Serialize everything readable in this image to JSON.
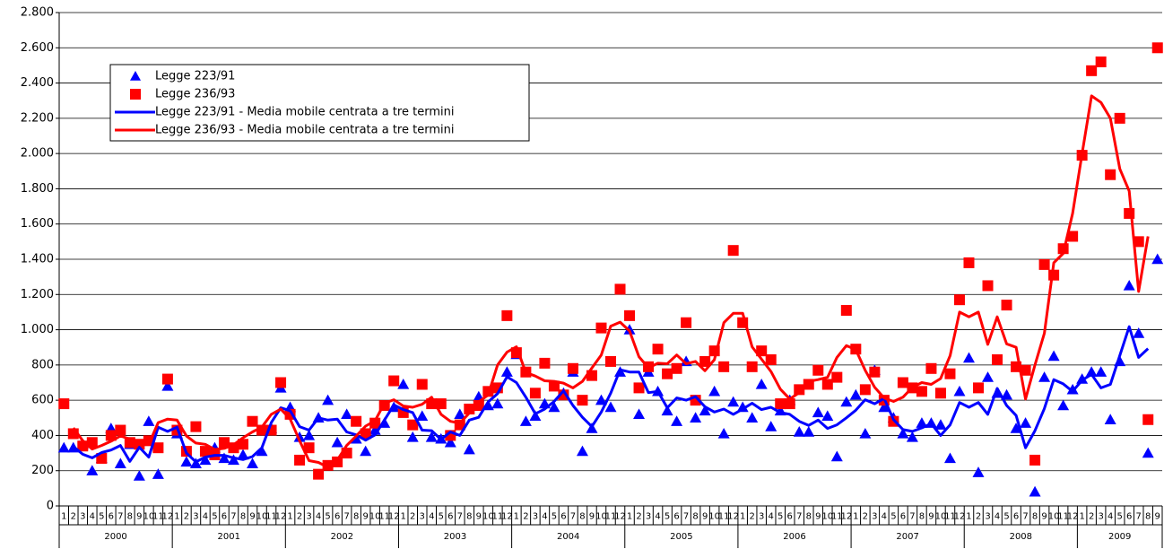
{
  "chart_data": {
    "type": "line",
    "categories": [
      "1",
      "2",
      "3",
      "4",
      "5",
      "6",
      "7",
      "8",
      "9",
      "10",
      "11",
      "12",
      "1",
      "2",
      "3",
      "4",
      "5",
      "6",
      "7",
      "8",
      "9",
      "10",
      "11",
      "12",
      "1",
      "2",
      "3",
      "4",
      "5",
      "6",
      "7",
      "8",
      "9",
      "10",
      "11",
      "12",
      "1",
      "2",
      "3",
      "4",
      "5",
      "6",
      "7",
      "8",
      "9",
      "10",
      "11",
      "12",
      "1",
      "2",
      "3",
      "4",
      "5",
      "6",
      "7",
      "8",
      "9",
      "10",
      "11",
      "12",
      "1",
      "2",
      "3",
      "4",
      "5",
      "6",
      "7",
      "8",
      "9",
      "10",
      "11",
      "12",
      "1",
      "2",
      "3",
      "4",
      "5",
      "6",
      "7",
      "8",
      "9",
      "10",
      "11",
      "12",
      "1",
      "2",
      "3",
      "4",
      "5",
      "6",
      "7",
      "8",
      "9",
      "10",
      "11",
      "12",
      "1",
      "2",
      "3",
      "4",
      "5",
      "6",
      "7",
      "8",
      "9",
      "10",
      "11",
      "12",
      "1",
      "2",
      "3",
      "4",
      "5",
      "6",
      "7",
      "8",
      "9"
    ],
    "years": [
      "2000",
      "2001",
      "2002",
      "2003",
      "2004",
      "2005",
      "2006",
      "2007",
      "2008",
      "2009"
    ],
    "ylim": [
      0,
      2800
    ],
    "yticks": [
      0,
      200,
      400,
      600,
      800,
      {
        "value": 1000,
        "label": "1.000"
      },
      {
        "value": 1200,
        "label": "1.200"
      },
      {
        "value": 1400,
        "label": "1.400"
      },
      {
        "value": 1600,
        "label": "1.600"
      },
      {
        "value": 1800,
        "label": "1.800"
      },
      {
        "value": 2000,
        "label": "2.000"
      },
      {
        "value": 2200,
        "label": "2.200"
      },
      {
        "value": 2400,
        "label": "2.400"
      },
      {
        "value": 2600,
        "label": "2.600"
      },
      {
        "value": 2800,
        "label": "2.800"
      }
    ],
    "grid": true,
    "legend": "upper left",
    "series": [
      {
        "name": "Legge 223/91",
        "color": "#0000ff",
        "mark": "triangle",
        "values": [
          330,
          330,
          350,
          200,
          270,
          440,
          240,
          350,
          170,
          480,
          180,
          680,
          410,
          250,
          240,
          260,
          330,
          270,
          260,
          290,
          240,
          310,
          440,
          670,
          560,
          390,
          400,
          500,
          600,
          360,
          520,
          380,
          310,
          430,
          470,
          560,
          690,
          390,
          510,
          390,
          380,
          360,
          520,
          320,
          620,
          570,
          580,
          760,
          860,
          480,
          510,
          580,
          560,
          640,
          760,
          310,
          440,
          600,
          560,
          760,
          1000,
          520,
          760,
          650,
          540,
          480,
          820,
          500,
          540,
          650,
          410,
          590,
          560,
          500,
          690,
          450,
          540,
          600,
          420,
          420,
          530,
          510,
          280,
          590,
          630,
          410,
          770,
          560,
          500,
          410,
          390,
          470,
          470,
          460,
          270,
          650,
          840,
          190,
          730,
          640,
          630,
          440,
          470,
          80,
          730,
          850,
          570,
          660,
          720,
          760,
          760,
          490,
          820,
          1250,
          980,
          300,
          1400
        ]
      },
      {
        "name": "Legge 236/93",
        "color": "#ff0000",
        "mark": "square",
        "values": [
          580,
          410,
          340,
          360,
          270,
          400,
          430,
          360,
          350,
          370,
          330,
          720,
          430,
          310,
          450,
          310,
          290,
          360,
          330,
          350,
          480,
          430,
          430,
          700,
          520,
          260,
          330,
          180,
          230,
          250,
          300,
          480,
          410,
          470,
          570,
          710,
          530,
          460,
          690,
          580,
          580,
          400,
          460,
          550,
          570,
          650,
          670,
          1080,
          870,
          760,
          640,
          810,
          680,
          630,
          780,
          600,
          740,
          1010,
          820,
          1230,
          1080,
          670,
          790,
          890,
          750,
          780,
          1040,
          600,
          820,
          880,
          790,
          1450,
          1040,
          790,
          880,
          830,
          580,
          580,
          660,
          690,
          770,
          690,
          730,
          1110,
          890,
          660,
          760,
          600,
          480,
          700,
          670,
          650,
          780,
          640,
          750,
          1170,
          1380,
          670,
          1250,
          830,
          1140,
          790,
          770,
          260,
          1370,
          1310,
          1460,
          1530,
          1990,
          2470,
          2520,
          1880,
          2200,
          1660,
          1500,
          490,
          2600
        ]
      },
      {
        "name": "Legge 223/91 - Media mobile centrata a tre termini",
        "color": "#0000ff",
        "mark": "line",
        "values": [
          null,
          337,
          293,
          273,
          303,
          317,
          343,
          253,
          333,
          277,
          447,
          423,
          447,
          300,
          250,
          277,
          287,
          287,
          273,
          263,
          280,
          330,
          473,
          557,
          540,
          450,
          430,
          500,
          487,
          493,
          420,
          403,
          373,
          403,
          487,
          573,
          547,
          530,
          430,
          427,
          377,
          420,
          400,
          487,
          503,
          590,
          637,
          733,
          700,
          617,
          523,
          550,
          593,
          653,
          570,
          503,
          450,
          533,
          640,
          773,
          760,
          760,
          643,
          650,
          557,
          613,
          600,
          620,
          563,
          533,
          550,
          520,
          550,
          583,
          547,
          560,
          530,
          520,
          480,
          457,
          487,
          440,
          460,
          500,
          543,
          603,
          580,
          610,
          490,
          433,
          423,
          443,
          467,
          400,
          460,
          587,
          560,
          587,
          520,
          667,
          570,
          513,
          330,
          427,
          553,
          717,
          693,
          650,
          713,
          747,
          670,
          690,
          853,
          1017,
          843,
          893,
          null
        ]
      },
      {
        "name": "Legge 236/93 - Media mobile centrata a tre termini",
        "color": "#ff0000",
        "mark": "line",
        "values": [
          null,
          443,
          370,
          323,
          343,
          367,
          397,
          380,
          360,
          350,
          473,
          493,
          487,
          397,
          357,
          350,
          320,
          327,
          347,
          387,
          420,
          447,
          520,
          550,
          493,
          370,
          257,
          247,
          220,
          260,
          343,
          397,
          453,
          483,
          583,
          603,
          567,
          560,
          577,
          617,
          520,
          480,
          470,
          527,
          590,
          630,
          800,
          873,
          903,
          757,
          737,
          710,
          707,
          697,
          670,
          707,
          783,
          857,
          1020,
          1043,
          993,
          847,
          783,
          810,
          807,
          857,
          807,
          820,
          767,
          830,
          1040,
          1093,
          1093,
          903,
          833,
          763,
          663,
          607,
          643,
          707,
          717,
          730,
          843,
          910,
          887,
          770,
          673,
          613,
          593,
          617,
          673,
          700,
          690,
          723,
          853,
          1100,
          1073,
          1100,
          917,
          1073,
          920,
          900,
          607,
          800,
          980,
          1380,
          1433,
          1660,
          1997,
          2327,
          2290,
          2200,
          1913,
          1787,
          1217,
          1530,
          null
        ]
      }
    ]
  }
}
